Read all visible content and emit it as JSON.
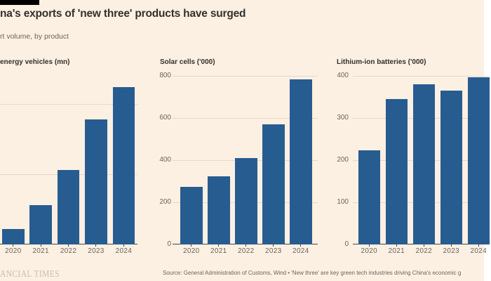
{
  "card": {
    "title": "na's exports of 'new three' products have surged",
    "subtitle": "rt volume, by product",
    "footer": {
      "wordmark": "ANCIAL TIMES",
      "source": "Source: General Administration of Customs, Wind • 'New three' are key green tech industries driving China's economic g"
    }
  },
  "colors": {
    "background": "#FCF0E3",
    "accent_bar": "#000000",
    "bar_blue": "#275C90",
    "gridline": "#E5D8C9",
    "axis_line": "#4A443F",
    "title_text": "#33302A",
    "muted_text": "#6B635B",
    "tick_text": "#6B635B",
    "wordmark_text": "#CDBCAC"
  },
  "chart_data": [
    {
      "type": "bar",
      "title": "energy vehicles (mn)",
      "categories": [
        "2020",
        "2021",
        "2022",
        "2023",
        "2024"
      ],
      "values": [
        0.22,
        0.56,
        1.06,
        1.78,
        2.24
      ],
      "xlabel": "",
      "ylabel": "",
      "ylim": [
        0,
        2.4
      ],
      "yticks": [
        0,
        1,
        2
      ],
      "ytick_labels_visible": false,
      "grid": true,
      "legend": "none",
      "note": "y-axis labels cropped off left edge of screenshot"
    },
    {
      "type": "bar",
      "title": "Solar cells ('000)",
      "categories": [
        "2020",
        "2021",
        "2022",
        "2023",
        "2024"
      ],
      "values": [
        275,
        325,
        410,
        570,
        785
      ],
      "xlabel": "",
      "ylabel": "",
      "ylim": [
        0,
        800
      ],
      "yticks": [
        0,
        200,
        400,
        600,
        800
      ],
      "ytick_labels_visible": true,
      "grid": true,
      "legend": "none"
    },
    {
      "type": "bar",
      "title": "Lithium-ion batteries ('000)",
      "categories": [
        "2020",
        "2021",
        "2022",
        "2023",
        "2024"
      ],
      "values": [
        223,
        345,
        380,
        365,
        396
      ],
      "xlabel": "",
      "ylabel": "",
      "ylim": [
        0,
        400
      ],
      "yticks": [
        0,
        100,
        200,
        300,
        400
      ],
      "ytick_labels_visible": true,
      "grid": true,
      "legend": "none",
      "note": "2024 bar and label clipped at right edge of screenshot"
    }
  ]
}
